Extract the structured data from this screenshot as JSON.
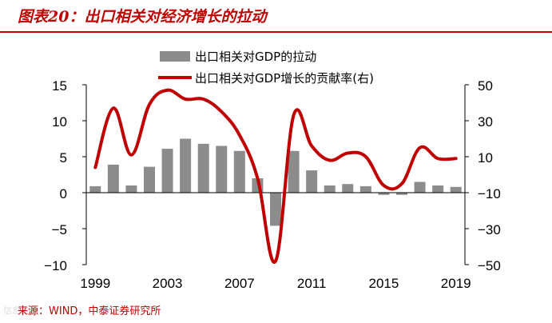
{
  "header": {
    "title": "图表20：出口相关对经济增长的拉动"
  },
  "footer": {
    "source": "来源：WIND，中泰证券研究所",
    "watermark": "信息宝盒"
  },
  "colors": {
    "accent": "#c00000",
    "bar": "#8c8c8c",
    "line": "#c00000",
    "axis": "#000000"
  },
  "chart_data": {
    "type": "bar",
    "title": "",
    "legend": [
      {
        "label": "出口相关对GDP的拉动",
        "kind": "bar"
      },
      {
        "label": "出口相关对GDP增长的贡献率(右)",
        "kind": "line"
      }
    ],
    "x": [
      1999,
      2000,
      2001,
      2002,
      2003,
      2004,
      2005,
      2006,
      2007,
      2008,
      2009,
      2010,
      2011,
      2012,
      2013,
      2014,
      2015,
      2016,
      2017,
      2018,
      2019
    ],
    "x_tick_labels": [
      "1999",
      "2003",
      "2007",
      "2011",
      "2015",
      "2019"
    ],
    "left_axis": {
      "min": -10,
      "max": 15,
      "ticks": [
        15,
        10,
        5,
        0,
        -5,
        -10
      ]
    },
    "right_axis": {
      "min": -50,
      "max": 50,
      "ticks": [
        50,
        30,
        10,
        -10,
        -30,
        -50
      ]
    },
    "series": [
      {
        "name": "出口相关对GDP的拉动",
        "axis": "left",
        "values": [
          0.9,
          3.9,
          1.0,
          3.6,
          6.1,
          7.5,
          6.8,
          6.5,
          5.8,
          2.0,
          -4.6,
          5.8,
          3.1,
          1.0,
          1.2,
          0.9,
          -0.3,
          -0.3,
          1.5,
          1.0,
          0.8
        ]
      },
      {
        "name": "出口相关对GDP增长的贡献率(右)",
        "axis": "right",
        "values": [
          4,
          37,
          11,
          39,
          47,
          42,
          42,
          35,
          22,
          -2,
          -48,
          33,
          16,
          8,
          12,
          10,
          -6,
          -5,
          15,
          9,
          9
        ]
      }
    ]
  }
}
